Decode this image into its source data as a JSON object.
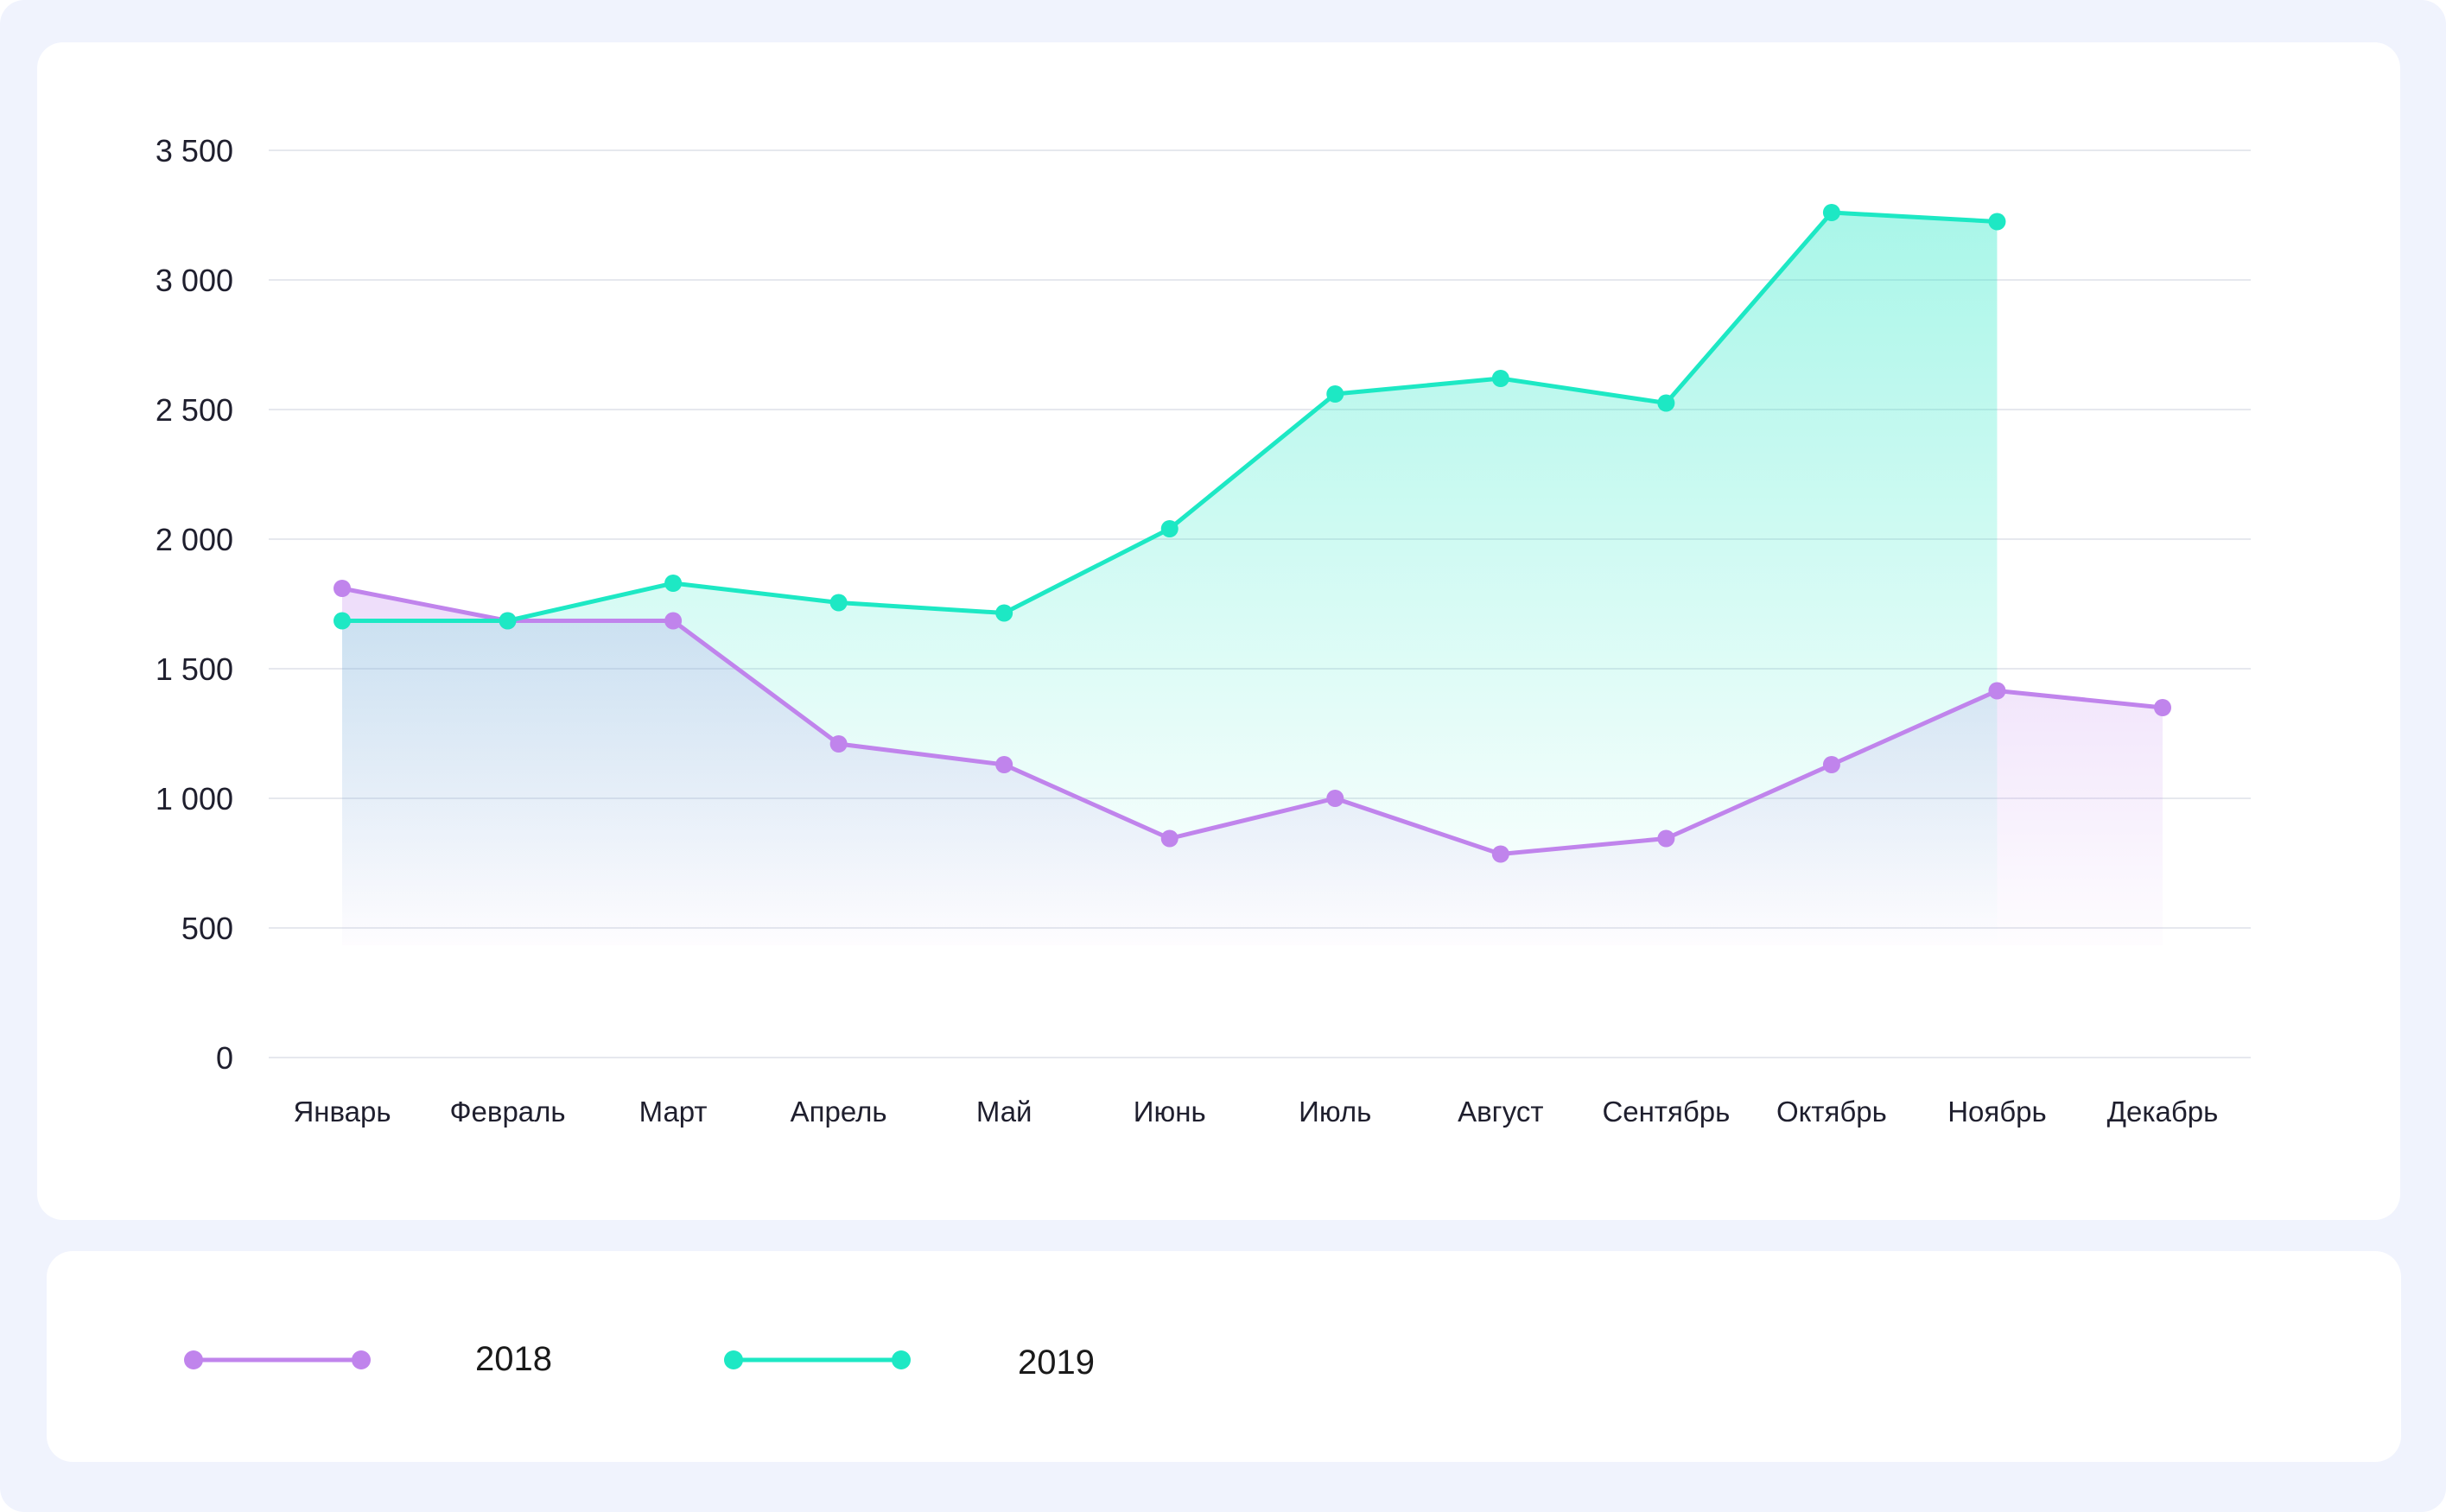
{
  "chart_data": {
    "type": "area",
    "categories": [
      "Январь",
      "Февраль",
      "Март",
      "Апрель",
      "Май",
      "Июнь",
      "Июль",
      "Август",
      "Сентябрь",
      "Октябрь",
      "Ноябрь",
      "Декабрь"
    ],
    "y_ticks": [
      {
        "value": 0,
        "label": "0"
      },
      {
        "value": 500,
        "label": "500"
      },
      {
        "value": 1000,
        "label": "1 000"
      },
      {
        "value": 1500,
        "label": "1 500"
      },
      {
        "value": 2000,
        "label": "2 000"
      },
      {
        "value": 2500,
        "label": "2 500"
      },
      {
        "value": 3000,
        "label": "3 000"
      },
      {
        "value": 3500,
        "label": "3 500"
      }
    ],
    "ylim": [
      0,
      3500
    ],
    "grid": true,
    "legend_position": "bottom",
    "series": [
      {
        "name": "2018",
        "color": "#c084ec",
        "values": [
          1810,
          1685,
          1685,
          1210,
          1130,
          845,
          1000,
          785,
          845,
          1130,
          1415,
          1350
        ]
      },
      {
        "name": "2019",
        "color": "#1de8c4",
        "values": [
          1685,
          1685,
          1830,
          1755,
          1715,
          2040,
          2560,
          2620,
          2525,
          3260,
          3225,
          null
        ]
      }
    ]
  }
}
